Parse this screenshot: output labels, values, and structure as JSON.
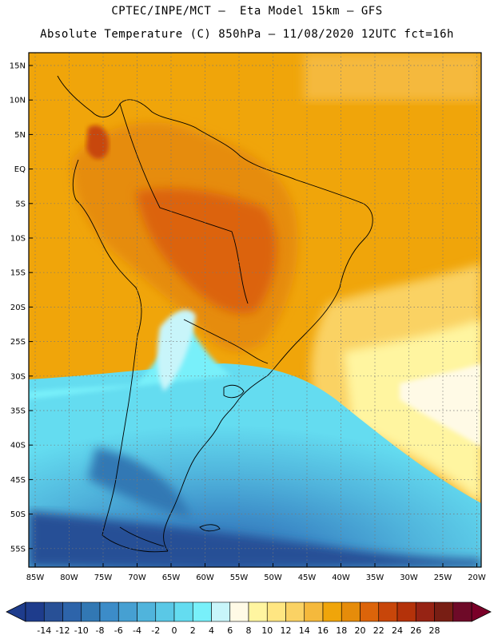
{
  "header": {
    "line1": "CPTEC/INPE/MCT –  Eta Model 15km – GFS",
    "line2": "Absolute Temperature (C) 850hPa – 11/08/2020 12UTC fct=16h"
  },
  "map": {
    "variable": "Absolute Temperature",
    "units": "C",
    "level": "850hPa",
    "lat_labels": [
      "15N",
      "10N",
      "5N",
      "EQ",
      "5S",
      "10S",
      "15S",
      "20S",
      "25S",
      "30S",
      "35S",
      "40S",
      "45S",
      "50S",
      "55S"
    ],
    "lon_labels": [
      "85W",
      "80W",
      "75W",
      "70W",
      "65W",
      "60W",
      "55W",
      "50W",
      "45W",
      "40W",
      "35W",
      "30W",
      "25W",
      "20W"
    ]
  },
  "colorbar": {
    "labels": [
      "-14",
      "-12",
      "-10",
      "-8",
      "-6",
      "-4",
      "-2",
      "0",
      "2",
      "4",
      "6",
      "8",
      "10",
      "12",
      "14",
      "16",
      "18",
      "20",
      "22",
      "24",
      "26",
      "28"
    ],
    "colors": [
      "#1e3c8c",
      "#285096",
      "#2d64aa",
      "#3278b4",
      "#3c8cc8",
      "#46a0d2",
      "#50b4dc",
      "#5ac8e6",
      "#64dcf0",
      "#78f0fa",
      "#c8f5fa",
      "#fffae6",
      "#fff5a0",
      "#ffe682",
      "#fad264",
      "#f5b93c",
      "#f0a50a",
      "#e68c0a",
      "#dc640a",
      "#c8460a",
      "#b4320a",
      "#962314",
      "#781e14",
      "#6e0a28"
    ],
    "under_color": "#1e3c8c",
    "over_color": "#7a0028"
  }
}
